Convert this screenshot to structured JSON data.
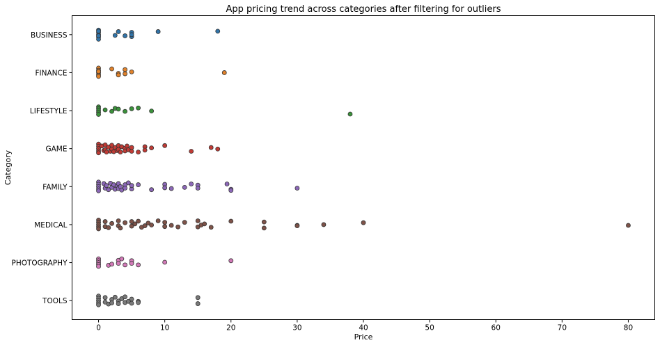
{
  "chart_data": {
    "type": "scatter",
    "title": "App pricing trend across categories after filtering for outliers",
    "xlabel": "Price",
    "ylabel": "Category",
    "xlim": [
      -4,
      84
    ],
    "xticks": [
      0,
      10,
      20,
      30,
      40,
      50,
      60,
      70,
      80
    ],
    "grid": false,
    "categories": [
      "BUSINESS",
      "FINANCE",
      "LIFESTYLE",
      "GAME",
      "FAMILY",
      "MEDICAL",
      "PHOTOGRAPHY",
      "TOOLS"
    ],
    "series": [
      {
        "category": "BUSINESS",
        "color": "#3174a9",
        "points": [
          [
            0,
            -0.12
          ],
          [
            0,
            -0.06
          ],
          [
            0,
            0
          ],
          [
            0,
            0.06
          ],
          [
            0,
            0.12
          ],
          [
            0,
            -0.09
          ],
          [
            0,
            0.03
          ],
          [
            2.5,
            0.02
          ],
          [
            3,
            -0.08
          ],
          [
            4,
            0.03
          ],
          [
            5,
            -0.06
          ],
          [
            5,
            0.05
          ],
          [
            5,
            0.0
          ],
          [
            9,
            -0.08
          ],
          [
            18,
            -0.09
          ]
        ]
      },
      {
        "category": "FINANCE",
        "color": "#e1822b",
        "points": [
          [
            0,
            -0.12
          ],
          [
            0,
            -0.06
          ],
          [
            0,
            0
          ],
          [
            0,
            0.06
          ],
          [
            0,
            0.1
          ],
          [
            0,
            -0.03
          ],
          [
            2,
            -0.1
          ],
          [
            3,
            0.02
          ],
          [
            3,
            0.06
          ],
          [
            4,
            -0.08
          ],
          [
            4,
            0.03
          ],
          [
            5,
            -0.02
          ],
          [
            19,
            0.0
          ]
        ]
      },
      {
        "category": "LIFESTYLE",
        "color": "#3b923b",
        "points": [
          [
            0,
            -0.1
          ],
          [
            0,
            -0.05
          ],
          [
            0,
            0
          ],
          [
            0,
            0.05
          ],
          [
            0,
            0.1
          ],
          [
            1,
            -0.02
          ],
          [
            2,
            0.02
          ],
          [
            2.5,
            -0.06
          ],
          [
            3,
            -0.04
          ],
          [
            4,
            0.02
          ],
          [
            5,
            -0.05
          ],
          [
            6,
            -0.07
          ],
          [
            8,
            0.01
          ],
          [
            38,
            0.09
          ]
        ]
      },
      {
        "category": "GAME",
        "color": "#c03b35",
        "points": [
          [
            0,
            -0.12
          ],
          [
            0,
            -0.06
          ],
          [
            0,
            0
          ],
          [
            0,
            0.06
          ],
          [
            0,
            0.11
          ],
          [
            0.5,
            -0.07
          ],
          [
            0.8,
            0.05
          ],
          [
            1,
            -0.1
          ],
          [
            1,
            0.03
          ],
          [
            1.2,
            0.09
          ],
          [
            1.5,
            -0.04
          ],
          [
            1.8,
            0.07
          ],
          [
            2,
            -0.09
          ],
          [
            2,
            0.01
          ],
          [
            2.3,
            0.08
          ],
          [
            2.5,
            -0.03
          ],
          [
            2.8,
            0.05
          ],
          [
            3,
            -0.08
          ],
          [
            3,
            0.02
          ],
          [
            3.3,
            0.09
          ],
          [
            3.5,
            -0.05
          ],
          [
            4,
            -0.01
          ],
          [
            4,
            0.06
          ],
          [
            4.3,
            -0.07
          ],
          [
            4.5,
            0.03
          ],
          [
            5,
            -0.03
          ],
          [
            5,
            0.07
          ],
          [
            6,
            0.09
          ],
          [
            7,
            -0.05
          ],
          [
            7,
            0.04
          ],
          [
            8,
            -0.02
          ],
          [
            10,
            -0.08
          ],
          [
            14,
            0.07
          ],
          [
            17,
            -0.03
          ],
          [
            18,
            0.01
          ]
        ]
      },
      {
        "category": "FAMILY",
        "color": "#8c68b8",
        "points": [
          [
            0,
            -0.12
          ],
          [
            0,
            -0.06
          ],
          [
            0,
            0
          ],
          [
            0,
            0.06
          ],
          [
            0,
            0.11
          ],
          [
            0.8,
            -0.08
          ],
          [
            1,
            0.04
          ],
          [
            1.2,
            -0.03
          ],
          [
            1.5,
            0.08
          ],
          [
            1.8,
            -0.09
          ],
          [
            2,
            0.02
          ],
          [
            2.3,
            -0.05
          ],
          [
            2.5,
            0.07
          ],
          [
            2.8,
            -0.02
          ],
          [
            3,
            0.05
          ],
          [
            3,
            -0.08
          ],
          [
            3.3,
            0.0
          ],
          [
            3.5,
            0.09
          ],
          [
            4,
            -0.05
          ],
          [
            4,
            0.04
          ],
          [
            4.5,
            -0.1
          ],
          [
            5,
            0.06
          ],
          [
            5,
            -0.03
          ],
          [
            6,
            -0.05
          ],
          [
            8,
            0.08
          ],
          [
            10,
            -0.06
          ],
          [
            10,
            0.03
          ],
          [
            11,
            0.05
          ],
          [
            13,
            0.02
          ],
          [
            14,
            -0.07
          ],
          [
            15,
            -0.04
          ],
          [
            15,
            0.04
          ],
          [
            19.4,
            -0.07
          ],
          [
            20,
            0.07
          ],
          [
            20,
            0.1
          ],
          [
            30,
            0.04
          ]
        ]
      },
      {
        "category": "MEDICAL",
        "color": "#7e5349",
        "points": [
          [
            0,
            -0.12
          ],
          [
            0,
            -0.06
          ],
          [
            0,
            0
          ],
          [
            0,
            0.06
          ],
          [
            0,
            0.11
          ],
          [
            1,
            -0.08
          ],
          [
            1,
            0.05
          ],
          [
            1.5,
            0.08
          ],
          [
            2,
            -0.03
          ],
          [
            3,
            -0.1
          ],
          [
            3,
            0.03
          ],
          [
            3.3,
            0.09
          ],
          [
            4,
            -0.05
          ],
          [
            5,
            -0.08
          ],
          [
            5,
            0.04
          ],
          [
            5.5,
            -0.02
          ],
          [
            6,
            -0.09
          ],
          [
            6.5,
            0.07
          ],
          [
            7,
            0.03
          ],
          [
            7.5,
            -0.04
          ],
          [
            8,
            0.01
          ],
          [
            9,
            -0.1
          ],
          [
            10,
            -0.06
          ],
          [
            10,
            0.05
          ],
          [
            11,
            0.02
          ],
          [
            12,
            0.06
          ],
          [
            13,
            -0.06
          ],
          [
            15,
            -0.1
          ],
          [
            15,
            0.06
          ],
          [
            15.5,
            0.01
          ],
          [
            16,
            -0.02
          ],
          [
            17,
            0.07
          ],
          [
            20,
            -0.09
          ],
          [
            25,
            -0.07
          ],
          [
            25,
            0.09
          ],
          [
            30,
            0.02
          ],
          [
            30,
            0.03
          ],
          [
            34,
            0.0
          ],
          [
            40,
            -0.05
          ],
          [
            80,
            0.02
          ]
        ]
      },
      {
        "category": "PHOTOGRAPHY",
        "color": "#d37ab8",
        "points": [
          [
            0,
            -0.1
          ],
          [
            0,
            -0.05
          ],
          [
            0,
            0
          ],
          [
            0,
            0.05
          ],
          [
            0,
            0.1
          ],
          [
            1.5,
            0.07
          ],
          [
            2,
            0.04
          ],
          [
            3,
            -0.06
          ],
          [
            3,
            0.02
          ],
          [
            3.5,
            -0.1
          ],
          [
            4,
            0.06
          ],
          [
            5,
            -0.05
          ],
          [
            5,
            0.02
          ],
          [
            6,
            0.06
          ],
          [
            10,
            -0.01
          ],
          [
            20,
            -0.05
          ]
        ]
      },
      {
        "category": "TOOLS",
        "color": "#7a7a7a",
        "points": [
          [
            0,
            -0.12
          ],
          [
            0,
            -0.06
          ],
          [
            0,
            0
          ],
          [
            0,
            0.06
          ],
          [
            0,
            0.11
          ],
          [
            1,
            -0.08
          ],
          [
            1,
            0.04
          ],
          [
            1.5,
            0.09
          ],
          [
            2,
            -0.03
          ],
          [
            2,
            0.06
          ],
          [
            2.5,
            -0.09
          ],
          [
            3,
            0.01
          ],
          [
            3,
            0.08
          ],
          [
            3.5,
            -0.05
          ],
          [
            4,
            0.05
          ],
          [
            4,
            -0.1
          ],
          [
            4.5,
            0.02
          ],
          [
            5,
            -0.04
          ],
          [
            5,
            0.07
          ],
          [
            6,
            0.02
          ],
          [
            6,
            0.05
          ],
          [
            15,
            -0.08
          ],
          [
            15,
            0.08
          ]
        ]
      }
    ]
  }
}
